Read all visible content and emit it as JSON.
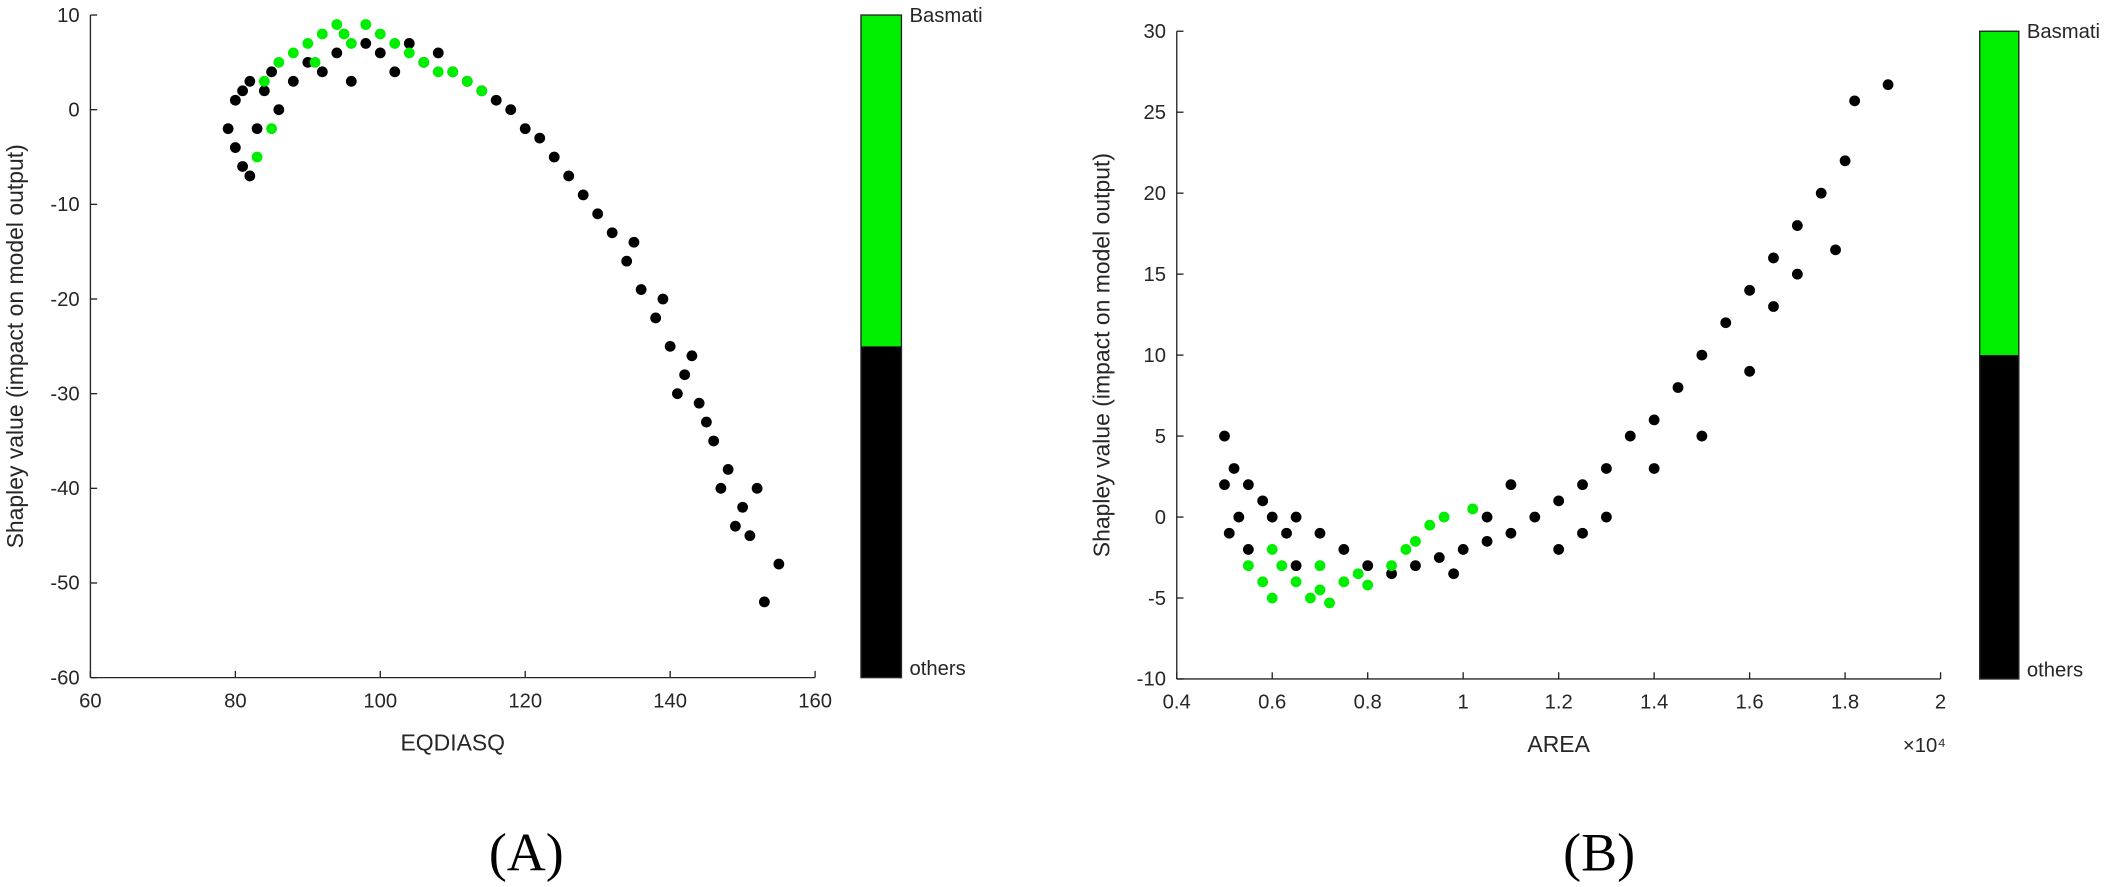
{
  "chart_data": [
    {
      "type": "scatter",
      "xlabel": "EQDIASQ",
      "ylabel": "Shapley value (impact on model output)",
      "caption": "(A)",
      "xlim": [
        60,
        160
      ],
      "xticks": [
        60,
        80,
        100,
        120,
        140,
        160
      ],
      "ylim": [
        -60,
        10
      ],
      "yticks": [
        -60,
        -50,
        -40,
        -30,
        -20,
        -10,
        0,
        10
      ],
      "series": [
        {
          "name": "others",
          "color": "#000000",
          "x": [
            79,
            80,
            80,
            81,
            81,
            82,
            82,
            83,
            84,
            85,
            86,
            88,
            90,
            92,
            94,
            96,
            98,
            100,
            102,
            104,
            106,
            108,
            110,
            112,
            114,
            116,
            118,
            120,
            122,
            124,
            126,
            128,
            130,
            132,
            134,
            136,
            138,
            140,
            142,
            144,
            146,
            148,
            150,
            151,
            152,
            153,
            155,
            135,
            139,
            143,
            141,
            145,
            147,
            149
          ],
          "values": [
            -2,
            1,
            -4,
            2,
            -6,
            -7,
            3,
            -2,
            2,
            4,
            0,
            3,
            5,
            4,
            6,
            3,
            7,
            6,
            4,
            7,
            5,
            6,
            4,
            3,
            2,
            1,
            0,
            -2,
            -3,
            -5,
            -7,
            -9,
            -11,
            -13,
            -16,
            -19,
            -22,
            -25,
            -28,
            -31,
            -35,
            -38,
            -42,
            -45,
            -40,
            -52,
            -48,
            -14,
            -20,
            -26,
            -30,
            -33,
            -40,
            -44
          ]
        },
        {
          "name": "Basmati",
          "color": "#00ee00",
          "x": [
            84,
            85,
            86,
            88,
            90,
            92,
            94,
            96,
            98,
            100,
            102,
            104,
            106,
            108,
            110,
            112,
            114,
            83,
            91,
            95
          ],
          "values": [
            3,
            -2,
            5,
            6,
            7,
            8,
            9,
            7,
            9,
            8,
            7,
            6,
            5,
            4,
            4,
            3,
            2,
            -5,
            5,
            8
          ]
        }
      ]
    },
    {
      "type": "scatter",
      "xlabel": "AREA",
      "ylabel": "Shapley value (impact on model output)",
      "caption": "(B)",
      "x_offset_label": "×10⁴",
      "xlim": [
        4000,
        20000
      ],
      "xticks": [
        {
          "value": 4000,
          "label": "0.4"
        },
        {
          "value": 6000,
          "label": "0.6"
        },
        {
          "value": 8000,
          "label": "0.8"
        },
        {
          "value": 10000,
          "label": "1"
        },
        {
          "value": 12000,
          "label": "1.2"
        },
        {
          "value": 14000,
          "label": "1.4"
        },
        {
          "value": 16000,
          "label": "1.6"
        },
        {
          "value": 18000,
          "label": "1.8"
        },
        {
          "value": 20000,
          "label": "2"
        }
      ],
      "ylim": [
        -10,
        30
      ],
      "yticks": [
        -10,
        -5,
        0,
        5,
        10,
        15,
        20,
        25,
        30
      ],
      "series": [
        {
          "name": "others",
          "color": "#000000",
          "x": [
            5000,
            5000,
            5100,
            5200,
            5300,
            5500,
            5800,
            6000,
            6300,
            6500,
            7000,
            7500,
            8000,
            8500,
            9000,
            9500,
            10000,
            10500,
            11000,
            11500,
            12000,
            12500,
            13000,
            13500,
            14000,
            14500,
            15000,
            15500,
            16000,
            16500,
            17000,
            17500,
            18000,
            18200,
            18900,
            17800,
            13000,
            12500,
            14000,
            15000,
            16000,
            11000,
            10500,
            9800,
            6500,
            5500,
            12000,
            17000,
            16500
          ],
          "values": [
            5,
            2,
            -1,
            3,
            0,
            2,
            1,
            0,
            -1,
            0,
            -1,
            -2,
            -3,
            -3.5,
            -3,
            -2.5,
            -2,
            -1.5,
            -1,
            0,
            1,
            2,
            3,
            5,
            6,
            8,
            10,
            12,
            14,
            16,
            18,
            20,
            22,
            25.7,
            26.7,
            16.5,
            0,
            -1,
            3,
            5,
            9,
            2,
            0,
            -3.5,
            -3,
            -2,
            -2,
            15,
            13
          ]
        },
        {
          "name": "Basmati",
          "color": "#00ee00",
          "x": [
            5500,
            5800,
            6000,
            6200,
            6500,
            6800,
            7000,
            7200,
            7500,
            7800,
            8000,
            8500,
            8800,
            9000,
            9300,
            9600,
            10200,
            6000,
            7000
          ],
          "values": [
            -3,
            -4,
            -5,
            -3,
            -4,
            -5,
            -4.5,
            -5.3,
            -4,
            -3.5,
            -4.2,
            -3,
            -2,
            -1.5,
            -0.5,
            0,
            0.5,
            -2,
            -3
          ]
        }
      ]
    }
  ]
}
